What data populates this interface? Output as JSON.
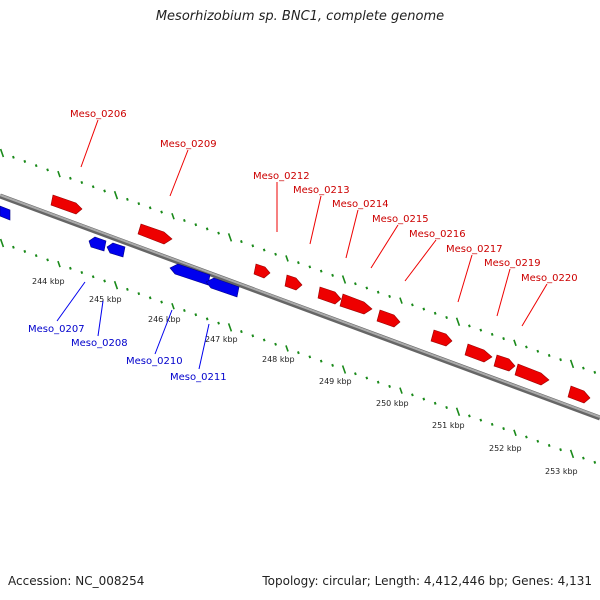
{
  "title": "Mesorhizobium sp. BNC1, complete genome",
  "footer": {
    "accession": "Accession: NC_008254",
    "summary": "Topology: circular; Length: 4,412,446 bp; Genes: 4,131"
  },
  "colors": {
    "forward": "#ee0000",
    "reverse": "#0000ee",
    "backbone": "#888888",
    "ticks": "#1a8a1a"
  },
  "kbp_labels": [
    "244 kbp",
    "245 kbp",
    "246 kbp",
    "247 kbp",
    "248 kbp",
    "249 kbp",
    "250 kbp",
    "251 kbp",
    "252 kbp",
    "253 kbp"
  ],
  "forward_genes": [
    "Meso_0206",
    "Meso_0209",
    "Meso_0212",
    "Meso_0213",
    "Meso_0214",
    "Meso_0215",
    "Meso_0216",
    "Meso_0217",
    "Meso_0219",
    "Meso_0220"
  ],
  "reverse_genes": [
    "Meso_0207",
    "Meso_0208",
    "Meso_0210",
    "Meso_0211"
  ]
}
